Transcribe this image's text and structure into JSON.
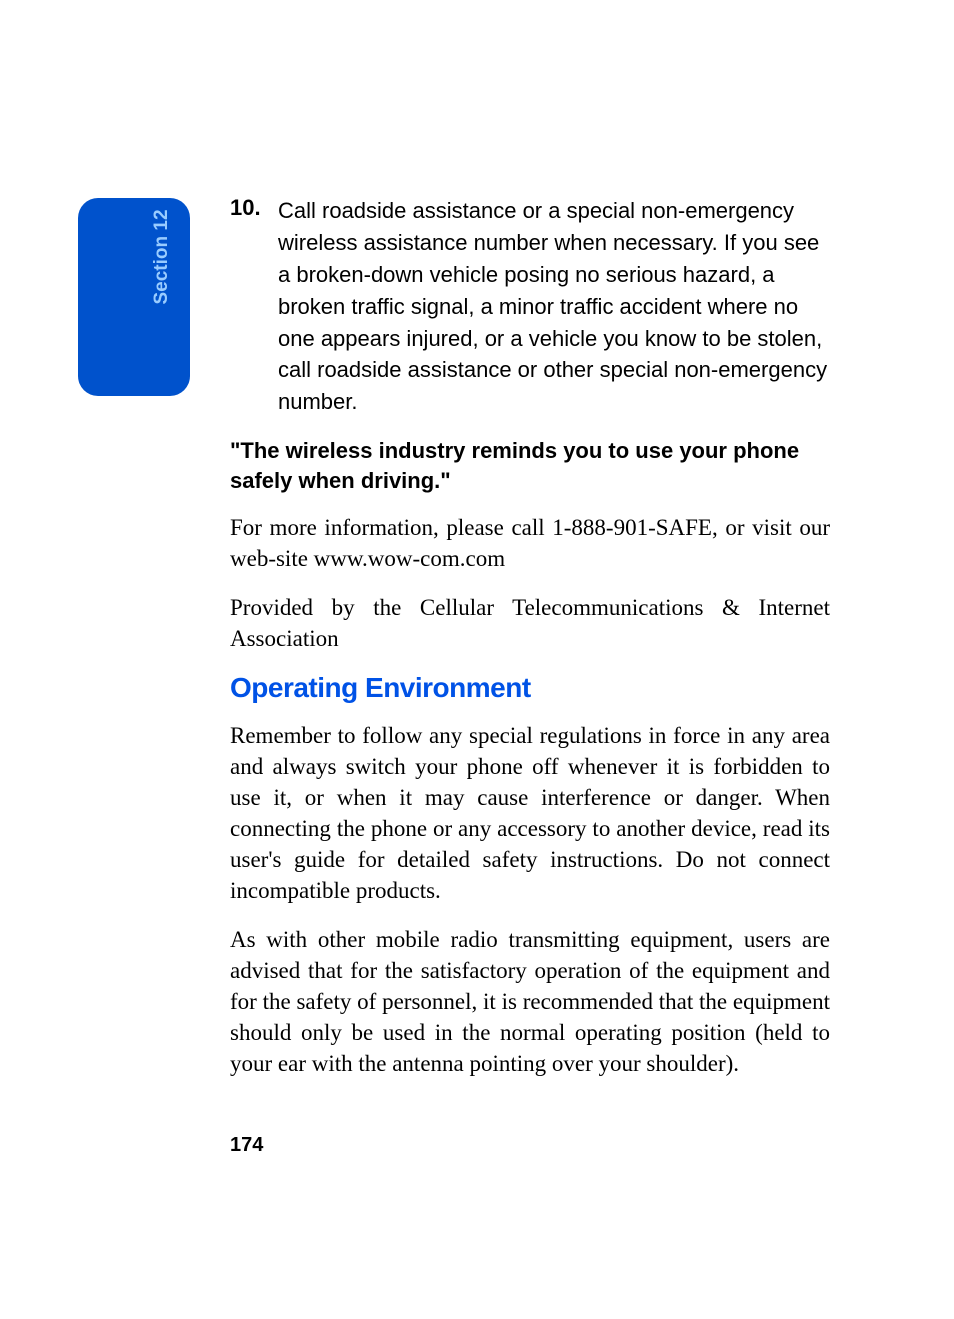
{
  "sectionTab": {
    "label": "Section 12",
    "backgroundColor": "#0052cc",
    "textColor": "#99ccff",
    "borderRadius": 20,
    "fontSize": 19
  },
  "listItem": {
    "number": "10.",
    "text": "Call roadside assistance or a special non-emergency wireless assistance number when necessary. If you see a broken-down vehicle posing no serious hazard, a broken traffic signal, a minor traffic accident where no one appears injured, or a vehicle you know to be stolen, call roadside assistance or other special non-emergency number."
  },
  "boldQuote": "\"The wireless industry reminds you to use your phone safely when driving.\"",
  "paragraphs": {
    "p1": "For more information, please call 1-888-901-SAFE, or visit our web-site www.wow-com.com",
    "p2": "Provided by the Cellular Telecommunications & Internet Association"
  },
  "heading": "Operating Environment",
  "headingColor": "#0052e6",
  "bodyParagraphs": {
    "b1": "Remember to follow any special regulations in force in any area and always switch your phone off whenever it is forbidden to use it, or when it may cause interference or danger. When connecting the phone or any accessory to another device, read its user's guide for detailed safety instructions. Do not connect incompatible products.",
    "b2": "As with other mobile radio transmitting equipment, users are advised that for the satisfactory operation of the equipment and for the safety of personnel, it is recommended that the equipment should only be used in the normal operating position (held to your ear with the antenna pointing over your shoulder)."
  },
  "pageNumber": "174",
  "typography": {
    "bodyFontSize": 23,
    "listFontSize": 22,
    "headingFontSize": 28,
    "pageNumberFontSize": 20
  },
  "colors": {
    "background": "#ffffff",
    "bodyText": "#000000"
  }
}
